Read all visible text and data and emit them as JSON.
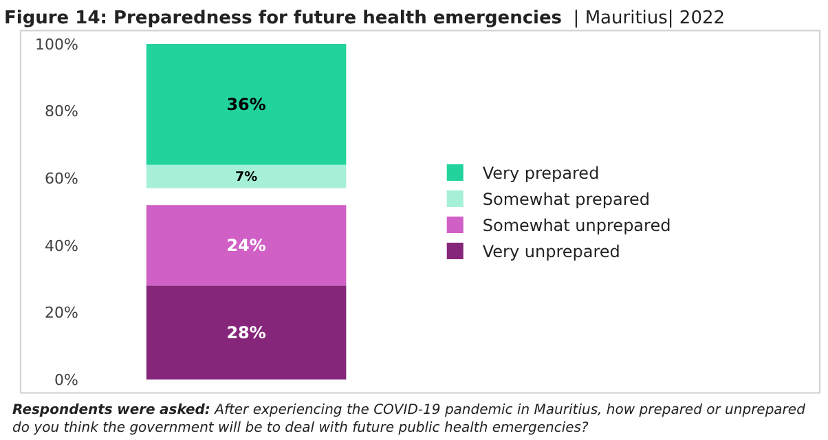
{
  "chart_data": {
    "type": "bar",
    "title": "Figure 14: Preparedness for future health emergencies",
    "subtitle": "| Mauritius| 2022",
    "categories": [
      null
    ],
    "series": [
      {
        "name": "Very unprepared",
        "color": "#86267a",
        "values": [
          28
        ],
        "base": [
          0
        ],
        "value_labels": [
          "28%"
        ]
      },
      {
        "name": "Somewhat unprepared",
        "color": "#d05fc6",
        "values": [
          24
        ],
        "base": [
          28
        ],
        "value_labels": [
          "24%"
        ]
      },
      {
        "name": "Somewhat prepared",
        "color": "#a6f0d8",
        "values": [
          7
        ],
        "base": [
          57
        ],
        "value_labels": [
          "7%"
        ]
      },
      {
        "name": "Very prepared",
        "color": "#22d39c",
        "values": [
          36
        ],
        "base": [
          64
        ],
        "value_labels": [
          "36%"
        ]
      }
    ],
    "ylim": [
      0,
      100
    ],
    "yticks": [
      {
        "value": 0,
        "label": "0%"
      },
      {
        "value": 20,
        "label": "20%"
      },
      {
        "value": 40,
        "label": "40%"
      },
      {
        "value": 60,
        "label": "60%"
      },
      {
        "value": 80,
        "label": "80%"
      },
      {
        "value": 100,
        "label": "100%"
      }
    ],
    "tick_labels": "y",
    "legend": "right",
    "annotations": [
      "Respondents were asked:",
      "After experiencing the COVID-19 pandemic in Mauritius, how prepared or unprepared do you think the government will be to deal with future public health emergencies?"
    ]
  }
}
